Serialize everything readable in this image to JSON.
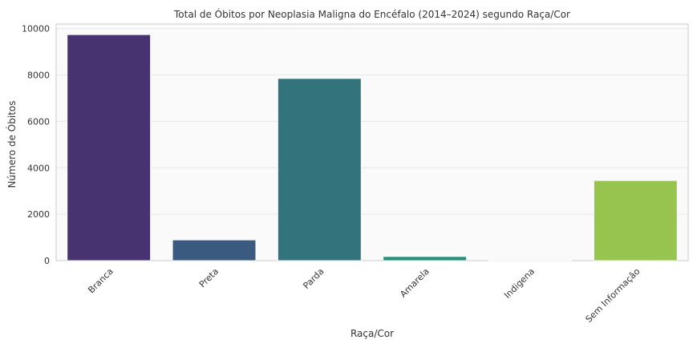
{
  "chart_data": {
    "type": "bar",
    "title": "Total de Óbitos por Neoplasia Maligna do Encéfalo (2014–2024) segundo Raça/Cor",
    "xlabel": "Raça/Cor",
    "ylabel": "Número de Óbitos",
    "categories": [
      "Branca",
      "Preta",
      "Parda",
      "Amarela",
      "Indigena",
      "Sem Informação"
    ],
    "values": [
      9740,
      890,
      7850,
      175,
      20,
      3450
    ],
    "colors": [
      "#46336f",
      "#3a5a80",
      "#32737c",
      "#2a8f78",
      "#3fb06a",
      "#97c44e"
    ],
    "ylim": [
      0,
      10200
    ],
    "yticks": [
      0,
      2000,
      4000,
      6000,
      8000,
      10000
    ],
    "grid": true
  }
}
